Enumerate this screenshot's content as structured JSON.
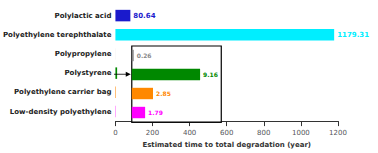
{
  "chart_data": [
    {
      "type": "bar",
      "orientation": "horizontal",
      "categories": [
        "Polylactic acid",
        "Polyethylene terephthalate",
        "Polypropylene",
        "Polystyrene",
        "Polyethylene carrier bag",
        "Low-density polyethylene"
      ],
      "values": [
        80.64,
        1179.31,
        0.26,
        9.16,
        2.85,
        1.79
      ],
      "colors": [
        "#1a1acc",
        "#00eeff",
        "#888888",
        "#008800",
        "#ff8800",
        "#ff00ff"
      ],
      "xlabel": "Estimated time to total degradation (year)",
      "xlim": [
        0,
        1200
      ],
      "xticks": [
        0,
        200,
        400,
        600,
        800,
        1000,
        1200
      ],
      "grid": false,
      "data_labels": true,
      "value_labels": [
        "80.64",
        "1179.31",
        null,
        null,
        null,
        null
      ]
    },
    {
      "type": "bar",
      "orientation": "horizontal",
      "categories": [
        null,
        null,
        null,
        null
      ],
      "values": [
        0.26,
        9.16,
        2.85,
        1.79
      ],
      "colors": [
        "#888888",
        "#008800",
        "#ff8800",
        "#ff00ff"
      ],
      "xlim": [
        0,
        12
      ],
      "tick_labels": false,
      "grid": false,
      "data_labels": true
    }
  ]
}
